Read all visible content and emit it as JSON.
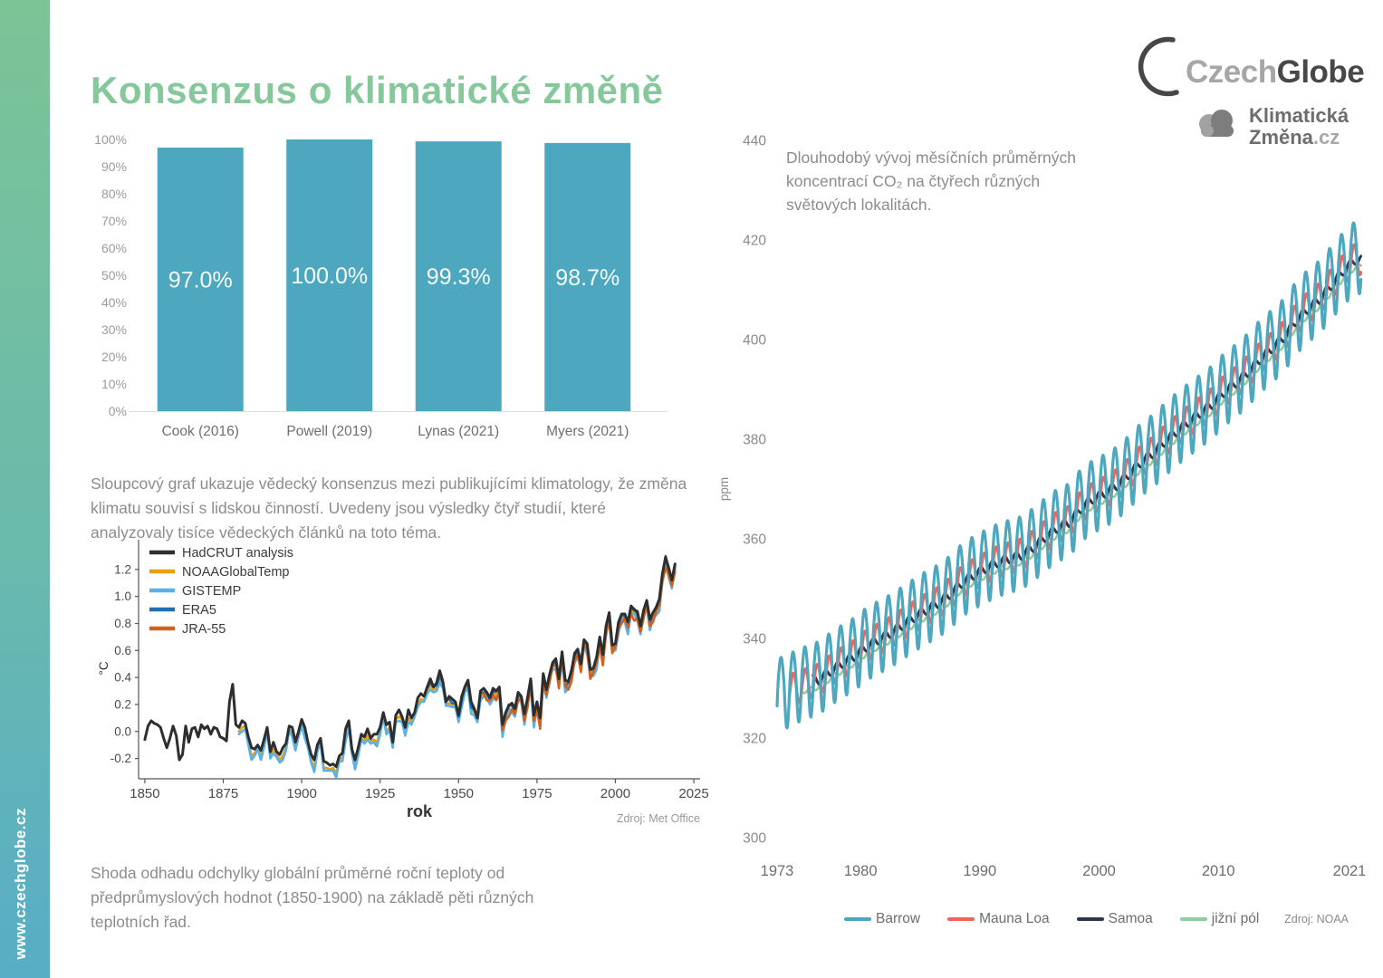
{
  "page": {
    "title": "Konsenzus o klimatické změně",
    "sidebar_url": "www.czechglobe.cz"
  },
  "logos": {
    "czechglobe": {
      "gray": "Czech",
      "dark": "Globe"
    },
    "klimaticka": {
      "line1": "Klimatická",
      "line2": "Změna",
      "domain": ".cz"
    }
  },
  "paragraphs": {
    "bar_caption": "Sloupcový graf ukazuje vědecký konsenzus mezi publikujícími klimatology, že změna klimatu souvisí s lidskou činností. Uvedeny jsou výsledky čtyř studií, které analyzovaly tisíce vědeckých článků na toto téma.",
    "temp_caption": "Shoda odhadu odchylky globální průměrné roční teploty od předprůmyslových hodnot (1850-1900) na základě pěti různých teplotních řad."
  },
  "colors": {
    "accent_green": "#86C89B",
    "bar_teal": "#4DA7BF",
    "text_gray": "#8C8C8C"
  },
  "chart_data": [
    {
      "id": "consensus-bar",
      "type": "bar",
      "categories": [
        "Cook (2016)",
        "Powell (2019)",
        "Lynas (2021)",
        "Myers (2021)"
      ],
      "values": [
        97.0,
        100.0,
        99.3,
        98.7
      ],
      "value_labels": [
        "97.0%",
        "100.0%",
        "99.3%",
        "98.7%"
      ],
      "bar_color": "#4DA7BF",
      "ylim": [
        0,
        100
      ],
      "yticks": [
        "0%",
        "10%",
        "20%",
        "30%",
        "40%",
        "50%",
        "60%",
        "70%",
        "80%",
        "90%",
        "100%"
      ],
      "grid": false,
      "legend": "none"
    },
    {
      "id": "temperature-line",
      "type": "line",
      "xlabel": "rok",
      "ylabel": "°C",
      "source": "Zdroj: Met Office",
      "xlim": [
        1848,
        2027
      ],
      "ylim": [
        -0.35,
        1.42
      ],
      "xticks": [
        1850,
        1875,
        1900,
        1925,
        1950,
        1975,
        2000,
        2025
      ],
      "ytick_values": [
        -0.2,
        0.0,
        0.2,
        0.4,
        0.6,
        0.8,
        1.0,
        1.2
      ],
      "ytick_labels": [
        "-0.2",
        "0.0",
        "0.2",
        "0.4",
        "0.6",
        "0.8",
        "1.0",
        "1.2"
      ],
      "grid": false,
      "legend_position": "top-left",
      "series": [
        {
          "name": "HadCRUT analysis",
          "color": "#2E2E2E",
          "start_year": 1850,
          "end_year": 2019,
          "values": [
            -0.06,
            0.04,
            0.08,
            0.06,
            0.05,
            0.03,
            -0.05,
            -0.12,
            -0.05,
            0.04,
            -0.03,
            -0.21,
            -0.17,
            0.04,
            -0.08,
            0.02,
            0.03,
            -0.04,
            0.05,
            0.02,
            0.04,
            -0.02,
            0.03,
            0.02,
            -0.04,
            -0.05,
            -0.07,
            0.22,
            0.35,
            0.05,
            0.03,
            0.08,
            0.06,
            -0.04,
            -0.12,
            -0.13,
            -0.1,
            -0.14,
            -0.06,
            0.03,
            -0.15,
            -0.08,
            -0.15,
            -0.17,
            -0.12,
            -0.09,
            0.04,
            0.03,
            -0.08,
            0.0,
            0.09,
            0.03,
            -0.08,
            -0.17,
            -0.21,
            -0.1,
            -0.05,
            -0.22,
            -0.23,
            -0.25,
            -0.24,
            -0.26,
            -0.18,
            -0.16,
            0.02,
            0.08,
            -0.13,
            -0.21,
            -0.12,
            -0.02,
            -0.04,
            0.02,
            -0.05,
            -0.02,
            -0.02,
            0.03,
            0.14,
            0.05,
            0.07,
            -0.08,
            0.12,
            0.16,
            0.11,
            0.03,
            0.16,
            0.1,
            0.14,
            0.25,
            0.28,
            0.26,
            0.33,
            0.39,
            0.33,
            0.36,
            0.45,
            0.37,
            0.22,
            0.26,
            0.24,
            0.22,
            0.12,
            0.26,
            0.33,
            0.38,
            0.22,
            0.17,
            0.1,
            0.3,
            0.32,
            0.29,
            0.25,
            0.32,
            0.3,
            0.33,
            0.05,
            0.14,
            0.19,
            0.21,
            0.17,
            0.29,
            0.26,
            0.13,
            0.25,
            0.39,
            0.12,
            0.22,
            0.1,
            0.43,
            0.31,
            0.42,
            0.51,
            0.54,
            0.39,
            0.59,
            0.38,
            0.37,
            0.45,
            0.58,
            0.61,
            0.5,
            0.68,
            0.65,
            0.46,
            0.47,
            0.55,
            0.7,
            0.57,
            0.78,
            0.88,
            0.64,
            0.65,
            0.81,
            0.87,
            0.87,
            0.81,
            0.93,
            0.9,
            0.89,
            0.78,
            0.9,
            0.97,
            0.83,
            0.88,
            0.92,
            0.98,
            1.17,
            1.29,
            1.21,
            1.12,
            1.24
          ]
        },
        {
          "name": "NOAAGlobalTemp",
          "color": "#E8A00E",
          "start_year": 1880,
          "end_year": 2019,
          "offset_cycle": [
            -0.03,
            -0.05,
            -0.02,
            -0.04,
            -0.06,
            -0.03,
            -0.02,
            -0.05,
            -0.04,
            -0.03
          ]
        },
        {
          "name": "GISTEMP",
          "color": "#5BB1E7",
          "start_year": 1880,
          "end_year": 2019,
          "offset_cycle": [
            -0.05,
            -0.08,
            -0.04,
            -0.06,
            -0.09,
            -0.05,
            -0.03,
            -0.07,
            -0.06,
            -0.04
          ]
        },
        {
          "name": "ERA5",
          "color": "#1F6FB4",
          "start_year": 1940,
          "end_year": 2019,
          "offset_cycle": [
            -0.01,
            -0.03,
            0.0,
            -0.02,
            -0.04,
            -0.01,
            0.01,
            -0.02,
            -0.03,
            -0.01
          ]
        },
        {
          "name": "JRA-55",
          "color": "#D2611C",
          "start_year": 1958,
          "end_year": 2019,
          "offset_cycle": [
            -0.04,
            -0.06,
            -0.02,
            -0.05,
            -0.07,
            -0.03,
            -0.04,
            -0.06,
            -0.08,
            -0.05
          ]
        }
      ]
    },
    {
      "id": "co2-line",
      "type": "line",
      "description": "Dlouhodobý vývoj měsíčních průměrných koncentrací CO₂ na čtyřech různých světových lokalitách.",
      "ylabel": "ppm",
      "source": "Zdroj: NOAA",
      "xlim": [
        1971.5,
        2022.5
      ],
      "ylim": [
        300,
        440
      ],
      "xticks": [
        1973,
        1980,
        1990,
        2000,
        2010,
        2021
      ],
      "yticks": [
        300,
        320,
        340,
        360,
        380,
        400,
        420,
        440
      ],
      "grid": false,
      "legend_position": "bottom-center",
      "series": [
        {
          "name": "Barrow",
          "color": "#4DA7BF",
          "start_year": 1973,
          "end_year": 2021,
          "seasonal_amplitude": 6.5,
          "shape": {
            "peak": 0.33,
            "up": 0.8,
            "down": 1.45
          },
          "annual_means": [
            331.0,
            332.3,
            333.3,
            334.2,
            336.0,
            337.6,
            339.0,
            341.0,
            342.3,
            343.6,
            345.2,
            346.8,
            348.3,
            349.6,
            351.4,
            353.8,
            355.3,
            356.6,
            357.8,
            358.6,
            359.3,
            361.0,
            363.0,
            364.8,
            365.9,
            368.9,
            370.6,
            371.8,
            373.3,
            375.5,
            378.0,
            379.7,
            382.0,
            384.1,
            386.0,
            387.8,
            389.6,
            392.1,
            393.9,
            396.1,
            398.7,
            400.8,
            403.0,
            406.4,
            408.8,
            410.7,
            413.6,
            416.4,
            418.6
          ]
        },
        {
          "name": "Mauna Loa",
          "color": "#F2635C",
          "start_year": 1974,
          "end_year": 2021,
          "seasonal_amplitude": 3.1,
          "shape": {
            "peak": 0.37,
            "up": 0.95,
            "down": 1.1
          },
          "annual_means": [
            330.1,
            331.1,
            332.0,
            333.8,
            335.4,
            336.8,
            338.8,
            340.1,
            341.4,
            343.0,
            344.6,
            346.1,
            347.4,
            349.2,
            351.6,
            353.1,
            354.4,
            355.6,
            356.4,
            357.1,
            358.8,
            360.8,
            362.6,
            363.7,
            366.7,
            368.4,
            369.6,
            371.1,
            373.3,
            375.8,
            377.5,
            379.8,
            381.9,
            383.8,
            385.6,
            387.4,
            389.9,
            391.7,
            393.9,
            396.5,
            398.6,
            400.8,
            404.2,
            406.6,
            408.5,
            411.4,
            414.2,
            416.4
          ]
        },
        {
          "name": "Samoa",
          "color": "#2C3852",
          "start_year": 1976,
          "end_year": 2021,
          "seasonal_amplitude": 0.9,
          "shape": {
            "peak": 0.05,
            "up": 1.0,
            "down": 1.0
          },
          "annual_means": [
            331.7,
            333.4,
            335.0,
            336.4,
            338.3,
            339.7,
            341.0,
            342.6,
            344.2,
            345.7,
            347.0,
            348.8,
            351.1,
            352.7,
            354.0,
            355.2,
            356.0,
            356.7,
            358.3,
            360.3,
            362.1,
            363.3,
            366.1,
            368.0,
            369.2,
            370.7,
            372.9,
            375.3,
            377.1,
            379.4,
            381.5,
            383.4,
            385.2,
            387.0,
            389.4,
            391.3,
            393.4,
            396.0,
            398.2,
            400.4,
            403.7,
            406.1,
            408.1,
            410.9,
            413.8,
            416.0
          ]
        },
        {
          "name": "jižní pól",
          "color": "#8FCD9E",
          "start_year": 1975,
          "end_year": 2021,
          "seasonal_amplitude": 0.5,
          "shape": {
            "peak": 0.78,
            "up": 1.0,
            "down": 1.0
          },
          "annual_means": [
            329.5,
            330.3,
            332.0,
            333.6,
            335.0,
            337.0,
            338.3,
            339.6,
            341.2,
            342.8,
            344.3,
            345.6,
            347.4,
            349.8,
            351.3,
            352.6,
            353.8,
            354.6,
            355.3,
            357.0,
            359.0,
            360.8,
            361.9,
            364.9,
            366.6,
            367.8,
            369.3,
            371.5,
            374.0,
            375.7,
            378.0,
            380.1,
            382.0,
            383.8,
            385.6,
            388.1,
            389.9,
            392.1,
            394.7,
            396.8,
            399.0,
            402.4,
            404.8,
            406.7,
            409.6,
            412.4,
            414.6
          ]
        }
      ]
    }
  ]
}
